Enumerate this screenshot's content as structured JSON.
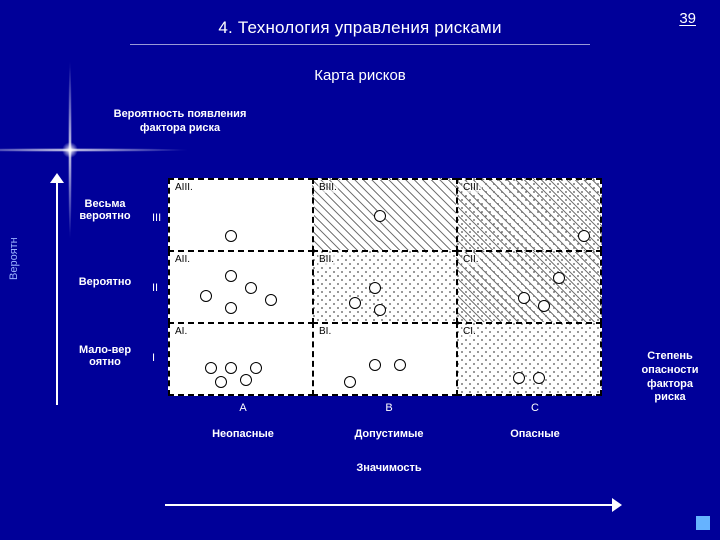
{
  "page_number": "39",
  "title": "4. Технология управления рисками",
  "subtitle": "Карта рисков",
  "y_axis_title": "Вероятность появления фактора риска",
  "y_axis_side_label": "Вероятн",
  "x_axis_title_right": "Степень опасности фактора риска",
  "x_axis_bottom_label": "Значимость",
  "row_labels": [
    "Весьма вероятно",
    "Вероятно",
    "Мало-вер оятно"
  ],
  "row_roman": [
    "III",
    "II",
    "I"
  ],
  "col_codes": [
    "A",
    "B",
    "C"
  ],
  "col_labels": [
    "Неопасные",
    "Допустимые",
    "Опасные"
  ],
  "cells": {
    "r0c0": {
      "name": "AIII.",
      "fill": "plain",
      "points": [
        [
          55,
          50
        ]
      ]
    },
    "r0c1": {
      "name": "BIII.",
      "fill": "hatch",
      "points": [
        [
          60,
          30
        ]
      ]
    },
    "r0c2": {
      "name": "CIII.",
      "fill": "mix",
      "points": [
        [
          120,
          50
        ]
      ]
    },
    "r1c0": {
      "name": "AII.",
      "fill": "plain",
      "points": [
        [
          55,
          18
        ],
        [
          75,
          30
        ],
        [
          30,
          38
        ],
        [
          55,
          50
        ],
        [
          95,
          42
        ]
      ]
    },
    "r1c1": {
      "name": "BII.",
      "fill": "dots",
      "points": [
        [
          55,
          30
        ],
        [
          35,
          45
        ],
        [
          60,
          52
        ]
      ]
    },
    "r1c2": {
      "name": "CII.",
      "fill": "mix",
      "points": [
        [
          95,
          20
        ],
        [
          60,
          40
        ],
        [
          80,
          48
        ]
      ]
    },
    "r2c0": {
      "name": "AI.",
      "fill": "plain",
      "points": [
        [
          35,
          38
        ],
        [
          55,
          38
        ],
        [
          80,
          38
        ],
        [
          45,
          52
        ],
        [
          70,
          50
        ]
      ]
    },
    "r2c1": {
      "name": "BI.",
      "fill": "plain",
      "points": [
        [
          55,
          35
        ],
        [
          80,
          35
        ],
        [
          30,
          52
        ]
      ]
    },
    "r2c2": {
      "name": "CI.",
      "fill": "dots",
      "points": [
        [
          55,
          48
        ],
        [
          75,
          48
        ]
      ]
    }
  },
  "colors": {
    "bg": "#000099",
    "line": "#ffffff"
  }
}
